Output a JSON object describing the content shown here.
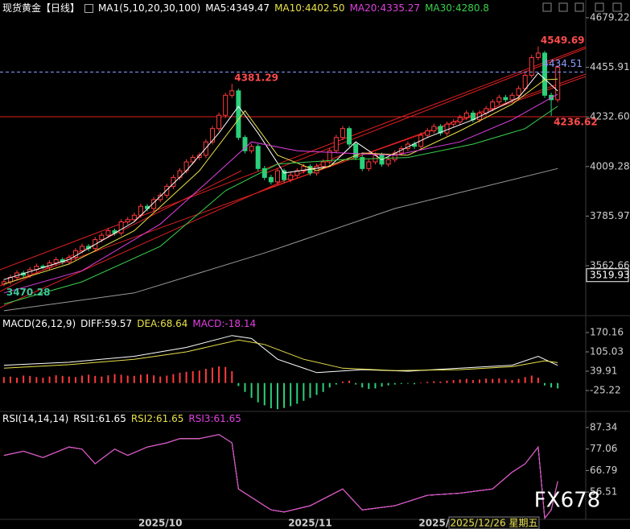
{
  "chart_data": [
    {
      "type": "candlestick",
      "title": "现货黄金【日线】",
      "indicator": "MA1(5,10,20,30,100)",
      "up_color": "#ff3b3b",
      "down_color": "#2bd07a",
      "xlim": [
        -0.6,
        89.3
      ],
      "xticks": [
        {
          "value": 24,
          "label": "2025/10"
        },
        {
          "value": 47,
          "label": "2025/11"
        },
        {
          "value": 66,
          "label": "2025/"
        }
      ],
      "cursor_label": "2025/12/26 星期五",
      "ylim": [
        3345,
        4759
      ],
      "yticks": [
        4679.22,
        4455.91,
        {
          "value": 4232.6,
          "label": "4232.60"
        },
        4009.28,
        3785.97,
        3562.66
      ],
      "open": [
        3480,
        3490,
        3510,
        3530,
        3520,
        3545,
        3560,
        3555,
        3575,
        3590,
        3580,
        3600,
        3630,
        3650,
        3640,
        3680,
        3700,
        3720,
        3710,
        3760,
        3770,
        3790,
        3830,
        3820,
        3860,
        3880,
        3920,
        3960,
        3990,
        4030,
        4050,
        4060,
        4120,
        4180,
        4240,
        4330,
        4350,
        4140,
        4080,
        4100,
        4000,
        3960,
        3940,
        3990,
        3950,
        3970,
        3990,
        4010,
        3980,
        4010,
        4030,
        4080,
        4140,
        4180,
        4110,
        4050,
        4000,
        4030,
        4060,
        4020,
        4040,
        4070,
        4090,
        4110,
        4100,
        4150,
        4170,
        4190,
        4160,
        4200,
        4210,
        4230,
        4250,
        4220,
        4250,
        4270,
        4300,
        4320,
        4310,
        4330,
        4360,
        4420,
        4500,
        4520,
        4330,
        4310
      ],
      "high": [
        3502,
        3522,
        3542,
        3540,
        3557,
        3572,
        3568,
        3587,
        3602,
        3600,
        3612,
        3642,
        3662,
        3660,
        3692,
        3712,
        3732,
        3730,
        3772,
        3782,
        3802,
        3842,
        3840,
        3872,
        3892,
        3932,
        3972,
        4002,
        4042,
        4062,
        4072,
        4132,
        4192,
        4252,
        4342,
        4381.29,
        4360,
        4150,
        4112,
        4110,
        4012,
        3972,
        4002,
        4000,
        3982,
        4002,
        4022,
        4020,
        4022,
        4042,
        4092,
        4152,
        4192,
        4190,
        4120,
        4062,
        4042,
        4072,
        4072,
        4052,
        4082,
        4102,
        4122,
        4122,
        4162,
        4182,
        4202,
        4200,
        4212,
        4222,
        4242,
        4262,
        4262,
        4262,
        4282,
        4312,
        4332,
        4332,
        4342,
        4372,
        4432,
        4512,
        4549.69,
        4530,
        4342,
        4467
      ],
      "low": [
        3470.28,
        3478,
        3498,
        3508,
        3508,
        3533,
        3548,
        3543,
        3563,
        3568,
        3568,
        3588,
        3618,
        3628,
        3628,
        3668,
        3688,
        3698,
        3698,
        3748,
        3758,
        3778,
        3808,
        3808,
        3848,
        3868,
        3908,
        3948,
        3978,
        4018,
        4038,
        4048,
        4108,
        4168,
        4228,
        4318,
        4128,
        4068,
        4068,
        3988,
        3948,
        3928,
        3928,
        3938,
        3938,
        3958,
        3978,
        3968,
        3968,
        3998,
        4018,
        4068,
        4128,
        4098,
        4038,
        3988,
        3988,
        4018,
        4008,
        4008,
        4028,
        4058,
        4078,
        4088,
        4088,
        4138,
        4158,
        4148,
        4148,
        4188,
        4198,
        4218,
        4208,
        4208,
        4238,
        4258,
        4288,
        4298,
        4298,
        4318,
        4348,
        4408,
        4488,
        4318,
        4236.62,
        4298
      ],
      "close": [
        3490,
        3510,
        3530,
        3520,
        3545,
        3560,
        3555,
        3575,
        3590,
        3580,
        3600,
        3630,
        3650,
        3640,
        3680,
        3700,
        3720,
        3710,
        3760,
        3770,
        3790,
        3830,
        3820,
        3860,
        3880,
        3920,
        3960,
        3990,
        4030,
        4050,
        4060,
        4120,
        4180,
        4240,
        4330,
        4350,
        4140,
        4080,
        4100,
        4000,
        3960,
        3940,
        3990,
        3950,
        3970,
        3990,
        4010,
        3980,
        4010,
        4030,
        4080,
        4140,
        4180,
        4110,
        4050,
        4000,
        4030,
        4060,
        4020,
        4040,
        4070,
        4090,
        4110,
        4100,
        4150,
        4170,
        4190,
        4160,
        4200,
        4210,
        4230,
        4250,
        4220,
        4250,
        4270,
        4300,
        4320,
        4310,
        4330,
        4360,
        4420,
        4500,
        4520,
        4330,
        4310,
        4455.91
      ],
      "series": [
        {
          "name": "MA5:4349.47",
          "color": "#ffffff",
          "x": [
            0,
            10,
            20,
            28,
            33,
            36,
            39,
            43,
            50,
            54,
            58,
            65,
            72,
            79,
            82,
            85
          ],
          "values": [
            3500,
            3590,
            3760,
            3990,
            4160,
            4280,
            4160,
            3980,
            4010,
            4120,
            4040,
            4140,
            4220,
            4320,
            4430,
            4349.47
          ]
        },
        {
          "name": "MA10:4402.50",
          "color": "#e8e04a",
          "x": [
            0,
            10,
            20,
            30,
            37,
            42,
            48,
            55,
            62,
            70,
            78,
            83,
            85
          ],
          "values": [
            3480,
            3570,
            3720,
            3990,
            4260,
            4060,
            3990,
            4070,
            4060,
            4170,
            4290,
            4400,
            4402.5
          ]
        },
        {
          "name": "MA20:4335.27",
          "color": "#e040e0",
          "x": [
            0,
            12,
            24,
            32,
            38,
            45,
            52,
            60,
            70,
            78,
            85
          ],
          "values": [
            3440,
            3540,
            3750,
            3960,
            4120,
            4080,
            4070,
            4060,
            4120,
            4220,
            4335.27
          ]
        },
        {
          "name": "MA30:4280.8",
          "color": "#3ad04a",
          "x": [
            0,
            12,
            24,
            34,
            42,
            52,
            62,
            72,
            80,
            85
          ],
          "values": [
            3390,
            3490,
            3650,
            3900,
            4020,
            4040,
            4050,
            4110,
            4180,
            4280.8
          ]
        },
        {
          "color": "#9a9a9a",
          "x": [
            0,
            20,
            40,
            60,
            85
          ],
          "values": [
            3360,
            3440,
            3620,
            3820,
            4000
          ]
        }
      ],
      "annotations": [
        {
          "x": 82,
          "value": 4549.69,
          "color": "#ff4b4b"
        },
        {
          "x": 35,
          "value": 4381.29,
          "color": "#ff4b4b"
        },
        {
          "x": 0,
          "value": 3470.28,
          "color": "#3fc79a"
        },
        {
          "x": 84,
          "value": 4236.62,
          "color": "#ff4b4b"
        }
      ],
      "levels": [
        {
          "value": 4434.51,
          "color": "#8c9cff",
          "style": "dashed"
        },
        {
          "value": 3519.93,
          "color": "#ffffff",
          "style": "box"
        }
      ]
    },
    {
      "type": "macd",
      "title": "MACD(26,12,9)",
      "xlim": [
        -0.6,
        89.3
      ],
      "ylim": [
        -93,
        219
      ],
      "yticks": [
        170.16,
        105.03,
        39.91,
        -25.22
      ],
      "series": [
        {
          "name": "DIFF:59.57",
          "color": "#ffffff",
          "x": [
            0,
            10,
            20,
            28,
            35,
            38,
            42,
            48,
            55,
            62,
            70,
            78,
            82,
            85
          ],
          "values": [
            60,
            70,
            90,
            120,
            160,
            150,
            80,
            35,
            45,
            40,
            50,
            60,
            90,
            59.57
          ]
        },
        {
          "name": "DEA:68.64",
          "color": "#e8e04a",
          "x": [
            0,
            10,
            20,
            28,
            36,
            40,
            46,
            52,
            60,
            70,
            78,
            83,
            85
          ],
          "values": [
            50,
            62,
            80,
            105,
            145,
            130,
            80,
            50,
            42,
            45,
            55,
            75,
            68.64
          ]
        },
        {
          "name": "MACD:-18.14",
          "color": "#e040e0",
          "type": "bar",
          "up_color": "#ff3b3b",
          "down_color": "#2bd07a",
          "values": [
            20,
            22,
            18,
            25,
            24,
            20,
            18,
            22,
            26,
            24,
            22,
            20,
            25,
            28,
            24,
            22,
            26,
            30,
            28,
            25,
            24,
            28,
            30,
            26,
            22,
            25,
            30,
            35,
            38,
            40,
            42,
            48,
            52,
            56,
            54,
            40,
            -10,
            -30,
            -50,
            -65,
            -75,
            -85,
            -88,
            -84,
            -78,
            -70,
            -60,
            -50,
            -40,
            -30,
            -15,
            -5,
            5,
            8,
            -5,
            -15,
            -20,
            -18,
            -12,
            -8,
            -5,
            -3,
            -2,
            -4,
            2,
            4,
            6,
            5,
            8,
            10,
            12,
            14,
            10,
            12,
            15,
            14,
            16,
            12,
            10,
            14,
            20,
            25,
            18,
            -8,
            -15,
            -18.14
          ]
        }
      ]
    },
    {
      "type": "line",
      "title": "RSI(14,14,14)",
      "xlim": [
        -0.6,
        89.3
      ],
      "ylim": [
        43.5,
        94.6
      ],
      "yticks": [
        87.34,
        77.06,
        66.79,
        56.51
      ],
      "series": [
        {
          "name": "RSI1:61.65",
          "color": "#ffffff",
          "x": [
            0,
            3,
            6,
            10,
            12,
            14,
            17,
            19,
            22,
            25,
            27,
            30,
            33,
            35,
            36,
            39,
            41,
            43,
            47,
            52,
            55,
            60,
            65,
            70,
            75,
            78,
            80,
            82,
            83,
            84,
            85
          ],
          "values": [
            74,
            76,
            73,
            78,
            77,
            70,
            77,
            74,
            78,
            80,
            82,
            82,
            84,
            80,
            58,
            52,
            48,
            47,
            50,
            58,
            48,
            50,
            55,
            56,
            58,
            66,
            70,
            78,
            44,
            48,
            61.65
          ]
        },
        {
          "name": "RSI2:61.65",
          "color": "#e8e04a",
          "x": [
            0,
            3,
            6,
            10,
            12,
            14,
            17,
            19,
            22,
            25,
            27,
            30,
            33,
            35,
            36,
            39,
            41,
            43,
            47,
            52,
            55,
            60,
            65,
            70,
            75,
            78,
            80,
            82,
            83,
            84,
            85
          ],
          "values": [
            74,
            76,
            73,
            78,
            77,
            70,
            77,
            74,
            78,
            80,
            82,
            82,
            84,
            80,
            58,
            52,
            48,
            47,
            50,
            58,
            48,
            50,
            55,
            56,
            58,
            66,
            70,
            78,
            44,
            48,
            61.65
          ]
        },
        {
          "name": "RSI3:61.65",
          "color": "#e040e0",
          "x": [
            0,
            3,
            6,
            10,
            12,
            14,
            17,
            19,
            22,
            25,
            27,
            30,
            33,
            35,
            36,
            39,
            41,
            43,
            47,
            52,
            55,
            60,
            65,
            70,
            75,
            78,
            80,
            82,
            83,
            84,
            85
          ],
          "values": [
            74,
            76,
            73,
            78,
            77,
            70,
            77,
            74,
            78,
            80,
            82,
            82,
            84,
            80,
            58,
            52,
            48,
            47,
            50,
            58,
            48,
            50,
            55,
            56,
            58,
            66,
            70,
            78,
            44,
            48,
            61.65
          ]
        }
      ]
    }
  ],
  "watermark": "FX678"
}
